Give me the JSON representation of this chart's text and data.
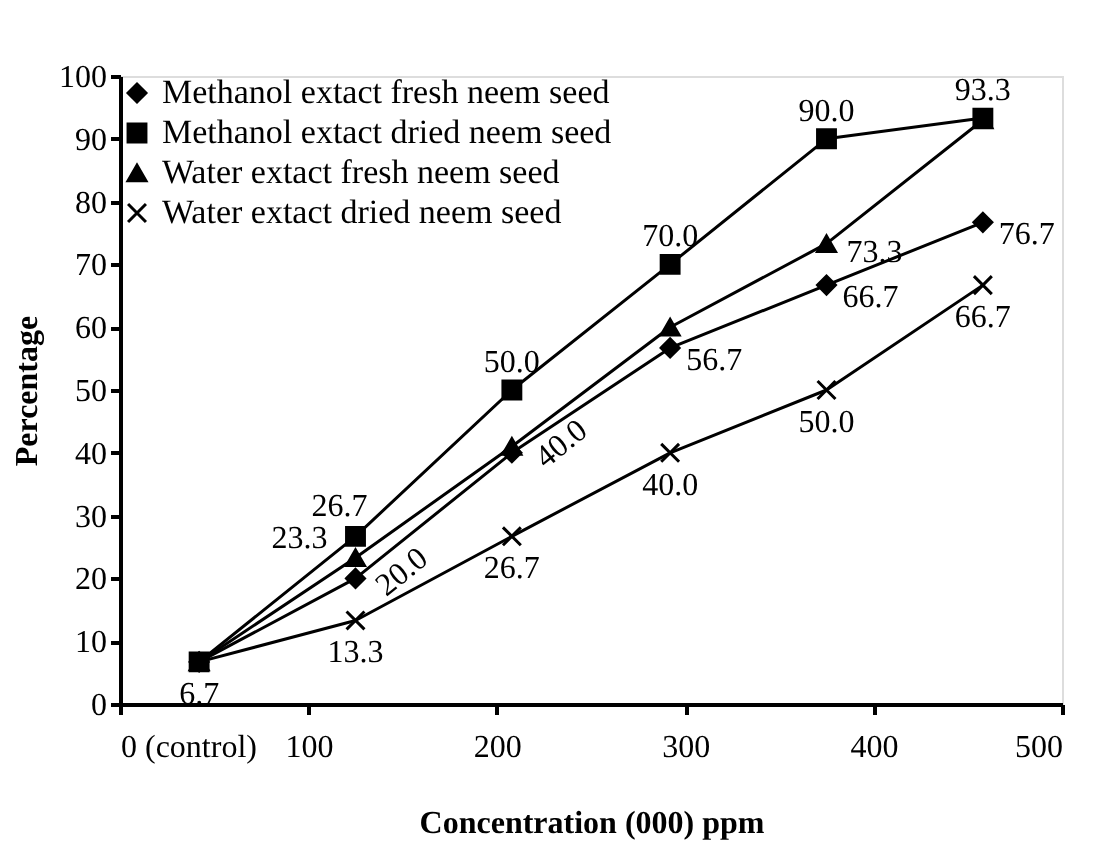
{
  "chart_data": {
    "type": "line",
    "xlabel": "Concentration (000) ppm",
    "ylabel": "Percentage",
    "x": [
      42,
      125,
      208,
      292,
      375,
      458
    ],
    "series": [
      {
        "name": "Methanol extact fresh neem seed",
        "color": "#000000",
        "marker": "diamond",
        "values": [
          6.7,
          20.0,
          40.0,
          56.7,
          66.7,
          76.7
        ],
        "value_labels": [
          null,
          "20.0",
          "40.0",
          "56.7",
          "66.7",
          "76.7"
        ]
      },
      {
        "name": "Methanol extact dried neem seed",
        "color": "#000000",
        "marker": "square",
        "values": [
          6.7,
          26.7,
          50.0,
          70.0,
          90.0,
          93.3
        ],
        "value_labels": [
          null,
          "26.7",
          "50.0",
          "70.0",
          "90.0",
          "93.3"
        ]
      },
      {
        "name": "Water extact fresh neem seed",
        "color": "#000000",
        "marker": "triangle",
        "values": [
          6.7,
          23.3,
          41.0,
          60.0,
          73.3,
          93.0
        ],
        "value_labels": [
          null,
          "23.3",
          null,
          null,
          "73.3",
          null
        ]
      },
      {
        "name": "Water extact dried neem seed",
        "color": "#000000",
        "marker": "cross",
        "values": [
          6.7,
          13.3,
          26.7,
          40.0,
          50.0,
          66.7
        ],
        "value_labels": [
          "6.7",
          "13.3",
          "26.7",
          "40.0",
          "50.0",
          "66.7"
        ]
      }
    ],
    "xlim": [
      0,
      500
    ],
    "xticks": [
      {
        "value": 0,
        "label": "0 (control)"
      },
      100,
      200,
      300,
      400,
      500
    ],
    "ylim": [
      0,
      100
    ],
    "yticks": [
      0,
      10,
      20,
      30,
      40,
      50,
      60,
      70,
      80,
      90,
      100
    ],
    "grid": false,
    "legend": "top left",
    "line_style": "solid"
  }
}
